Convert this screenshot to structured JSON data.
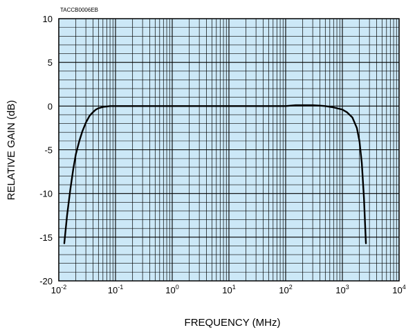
{
  "chart_data": {
    "type": "line",
    "code_label": "TACCB0006EB",
    "xlabel": "FREQUENCY (MHz)",
    "ylabel": "RELATIVE GAIN (dB)",
    "x_scale": "log",
    "xlim": [
      0.01,
      10000
    ],
    "ylim": [
      -20,
      10
    ],
    "grid": true,
    "background_color": "#cce8f7",
    "line_color": "#000000",
    "x_ticks": [
      {
        "value": 0.01,
        "base": "10",
        "exp": "-2"
      },
      {
        "value": 0.1,
        "base": "10",
        "exp": "-1"
      },
      {
        "value": 1,
        "base": "10",
        "exp": "0"
      },
      {
        "value": 10,
        "base": "10",
        "exp": "1"
      },
      {
        "value": 100,
        "base": "10",
        "exp": "2"
      },
      {
        "value": 1000,
        "base": "10",
        "exp": "3"
      },
      {
        "value": 10000,
        "base": "10",
        "exp": "4"
      }
    ],
    "y_ticks": [
      {
        "value": 10,
        "label": "10"
      },
      {
        "value": 5,
        "label": "5"
      },
      {
        "value": 0,
        "label": "0"
      },
      {
        "value": -5,
        "label": "-5"
      },
      {
        "value": -10,
        "label": "-10"
      },
      {
        "value": -15,
        "label": "-15"
      },
      {
        "value": -20,
        "label": "-20"
      }
    ],
    "series": [
      {
        "x": [
          0.0125,
          0.014,
          0.016,
          0.018,
          0.02,
          0.023,
          0.026,
          0.03,
          0.035,
          0.04,
          0.045,
          0.05,
          0.06,
          0.07,
          0.08,
          0.1,
          0.15,
          0.3,
          1,
          10,
          50,
          100,
          150,
          200,
          300,
          400,
          500,
          700,
          1000,
          1200,
          1500,
          1800,
          2000,
          2200,
          2400,
          2600
        ],
        "y": [
          -15.7,
          -12.5,
          -9.5,
          -7.2,
          -5.5,
          -4.0,
          -2.9,
          -1.9,
          -1.1,
          -0.7,
          -0.4,
          -0.25,
          -0.1,
          -0.05,
          0,
          0,
          0,
          0,
          0,
          0,
          0,
          0,
          0.1,
          0.1,
          0.1,
          0.05,
          0,
          -0.15,
          -0.4,
          -0.7,
          -1.3,
          -2.5,
          -4.0,
          -6.5,
          -10.5,
          -15.7
        ]
      }
    ]
  }
}
